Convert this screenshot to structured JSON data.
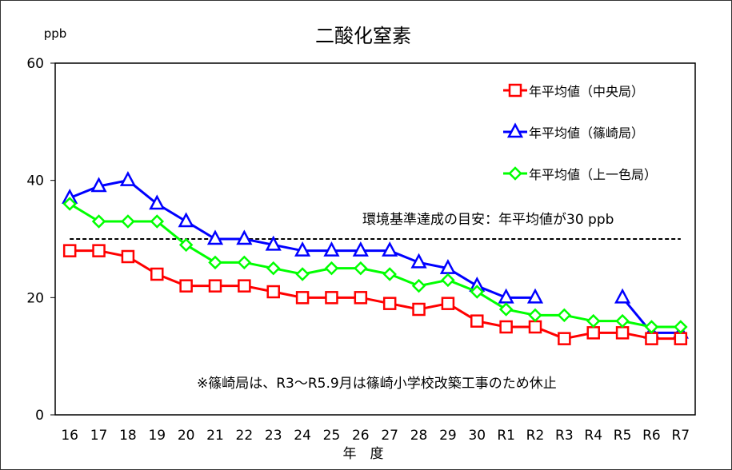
{
  "chart_data": {
    "type": "line",
    "title": "二酸化窒素",
    "ylabel": "ppb",
    "xlabel": "年　度",
    "ylim": [
      0,
      60
    ],
    "yticks": [
      0,
      20,
      40,
      60
    ],
    "categories": [
      "16",
      "17",
      "18",
      "19",
      "20",
      "21",
      "22",
      "23",
      "24",
      "25",
      "26",
      "27",
      "28",
      "29",
      "30",
      "R1",
      "R2",
      "R3",
      "R4",
      "R5",
      "R6",
      "R7"
    ],
    "series": [
      {
        "name": "年平均値（中央局）",
        "color": "#ff0000",
        "marker": "square",
        "values": [
          28,
          28,
          27,
          24,
          22,
          22,
          22,
          21,
          20,
          20,
          20,
          19,
          18,
          19,
          16,
          15,
          15,
          13,
          14,
          14,
          13,
          13
        ]
      },
      {
        "name": "年平均値（篠崎局）",
        "color": "#0000ff",
        "marker": "triangle",
        "values": [
          37,
          39,
          40,
          36,
          33,
          30,
          30,
          29,
          28,
          28,
          28,
          28,
          26,
          25,
          22,
          20,
          20,
          null,
          null,
          20,
          14,
          14
        ]
      },
      {
        "name": "年平均値（上一色局）",
        "color": "#00ff00",
        "marker": "diamond",
        "values": [
          36,
          33,
          33,
          33,
          29,
          26,
          26,
          25,
          24,
          25,
          25,
          24,
          22,
          23,
          21,
          18,
          17,
          17,
          16,
          16,
          15,
          15
        ]
      }
    ],
    "reference_line": {
      "value": 30,
      "label": "環境基準達成の目安：年平均値が30 ppb"
    },
    "annotation": "※篠崎局は、R3～R5.9月は篠崎小学校改築工事のため休止",
    "legend_position": "top-right",
    "grid": false
  }
}
